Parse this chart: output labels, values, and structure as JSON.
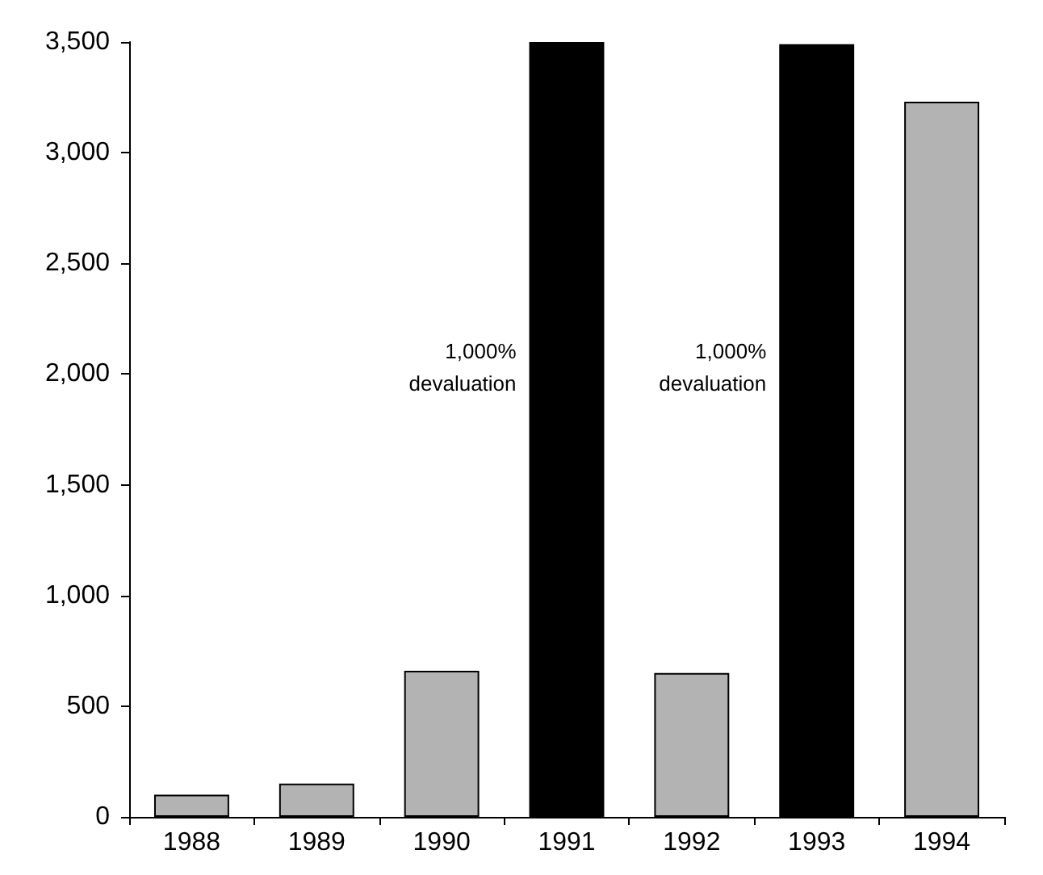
{
  "chart_data": {
    "type": "bar",
    "categories": [
      "1988",
      "1989",
      "1990",
      "1991",
      "1992",
      "1993",
      "1994"
    ],
    "values": [
      100,
      150,
      660,
      3500,
      650,
      3490,
      3230
    ],
    "colors": [
      "#b3b3b3",
      "#b3b3b3",
      "#b3b3b3",
      "#000000",
      "#b3b3b3",
      "#000000",
      "#b3b3b3"
    ],
    "ylim": [
      0,
      3500
    ],
    "yticks": [
      {
        "value": 0,
        "label": "0"
      },
      {
        "value": 500,
        "label": "500"
      },
      {
        "value": 1000,
        "label": "1,000"
      },
      {
        "value": 1500,
        "label": "1,500"
      },
      {
        "value": 2000,
        "label": "2,000"
      },
      {
        "value": 2500,
        "label": "2,500"
      },
      {
        "value": 3000,
        "label": "3,000"
      },
      {
        "value": 3500,
        "label": "3,500"
      }
    ],
    "grid": false,
    "annotations": [
      "1,000%\ndevaluation",
      "1,000%\ndevaluation"
    ]
  }
}
